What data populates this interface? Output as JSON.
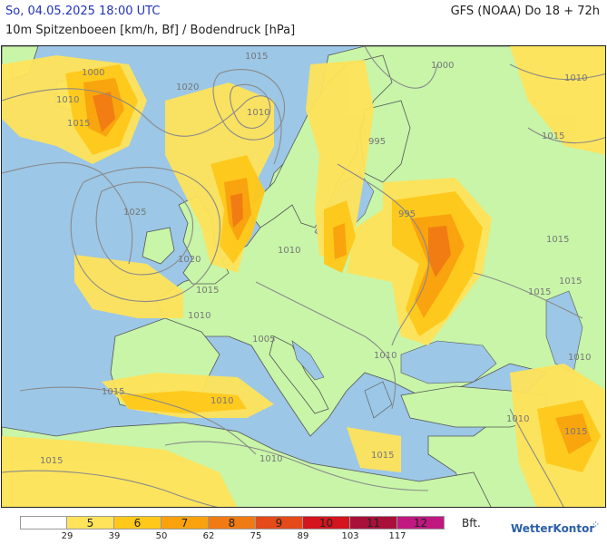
{
  "header": {
    "date": "So, 04.05.2025 18:00 UTC",
    "model": "GFS (NOAA) Do 18 + 72h",
    "parameter": "10m Spitzenboeen [km/h, Bf] / Bodendruck [hPa]"
  },
  "colors": {
    "sea": "#9cc7e6",
    "land_calm": "#c8f5a8",
    "coast": "#555555",
    "isobar": "#8a8a8a"
  },
  "isobar_labels": [
    "1000",
    "1005",
    "1010",
    "1015",
    "1020",
    "1025",
    "995"
  ],
  "legend": {
    "unit": "Bft.",
    "cells": [
      {
        "bft": "",
        "color": "#ffffff"
      },
      {
        "bft": "5",
        "color": "#ffe35a"
      },
      {
        "bft": "6",
        "color": "#ffc81a"
      },
      {
        "bft": "7",
        "color": "#f9a20e"
      },
      {
        "bft": "8",
        "color": "#f07a14"
      },
      {
        "bft": "9",
        "color": "#e44a1a"
      },
      {
        "bft": "10",
        "color": "#d4141e"
      },
      {
        "bft": "11",
        "color": "#a8103a"
      },
      {
        "bft": "12",
        "color": "#c01880"
      }
    ],
    "ticks": [
      "29",
      "39",
      "50",
      "62",
      "75",
      "89",
      "103",
      "117"
    ]
  },
  "brand": "WetterKontor"
}
